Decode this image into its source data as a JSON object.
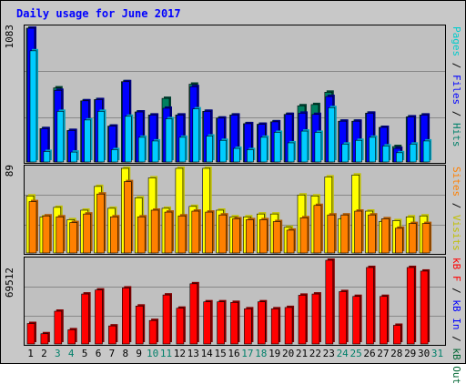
{
  "title": "Daily usage for June 2017",
  "colors": {
    "hits": "#00ccff",
    "hits_edge": "#00a2c0",
    "files": "#0000ff",
    "files_edge": "#000080",
    "pages": "#00cccc",
    "visits": "#ffff00",
    "visits_edge": "#c0c000",
    "sites": "#ff8000",
    "sites_edge": "#b05800",
    "kbf": "#ff0000",
    "kbf_edge": "#800000",
    "kbin": "#0000ff",
    "kbout": "#006633",
    "grid": "#888888",
    "weekend": "#00806a",
    "weekday": "#000000"
  },
  "legend": {
    "top": [
      {
        "text": "Pages",
        "color": "#00cccc"
      },
      {
        "text": " / ",
        "color": "#000000"
      },
      {
        "text": "Files",
        "color": "#0000ff"
      },
      {
        "text": " / ",
        "color": "#000000"
      },
      {
        "text": "Hits",
        "color": "#00806a"
      }
    ],
    "middle": [
      {
        "text": "Sites",
        "color": "#ff8000"
      },
      {
        "text": " / ",
        "color": "#000000"
      },
      {
        "text": "Visits",
        "color": "#c0c000"
      }
    ],
    "bottom": [
      {
        "text": "kB F",
        "color": "#ff0000"
      },
      {
        "text": " / ",
        "color": "#000000"
      },
      {
        "text": "kB In",
        "color": "#0000ff"
      },
      {
        "text": " / ",
        "color": "#000000"
      },
      {
        "text": "kB Out",
        "color": "#006633"
      }
    ]
  },
  "chart_data": [
    {
      "type": "bar",
      "panel": "hits-files-pages",
      "ymax_label": "1083",
      "ylim": [
        0,
        1083
      ],
      "categories": [
        "1",
        "2",
        "3",
        "4",
        "5",
        "6",
        "7",
        "8",
        "9",
        "10",
        "11",
        "12",
        "13",
        "14",
        "15",
        "16",
        "17",
        "18",
        "19",
        "20",
        "21",
        "22",
        "23",
        "24",
        "25",
        "26",
        "27",
        "28",
        "29",
        "30",
        "31"
      ],
      "series": [
        {
          "name": "Hits",
          "values": [
            1083,
            270,
            600,
            255,
            495,
            505,
            290,
            650,
            405,
            380,
            515,
            380,
            630,
            410,
            355,
            380,
            310,
            305,
            325,
            385,
            455,
            465,
            565,
            330,
            330,
            395,
            280,
            125,
            365,
            380,
            0
          ]
        },
        {
          "name": "Files",
          "values": [
            1083,
            270,
            580,
            255,
            495,
            505,
            290,
            650,
            405,
            380,
            435,
            380,
            610,
            410,
            355,
            380,
            310,
            305,
            325,
            385,
            395,
            385,
            530,
            330,
            330,
            395,
            280,
            110,
            365,
            380,
            0
          ]
        },
        {
          "name": "Pages",
          "values": [
            900,
            85,
            410,
            80,
            340,
            410,
            100,
            370,
            200,
            170,
            350,
            200,
            430,
            210,
            175,
            110,
            100,
            200,
            240,
            155,
            250,
            240,
            440,
            145,
            175,
            200,
            130,
            75,
            145,
            170,
            0
          ]
        }
      ]
    },
    {
      "type": "bar",
      "panel": "visits-sites",
      "ymax_label": "89",
      "ylim": [
        0,
        89
      ],
      "categories": [
        "1",
        "2",
        "3",
        "4",
        "5",
        "6",
        "7",
        "8",
        "9",
        "10",
        "11",
        "12",
        "13",
        "14",
        "15",
        "16",
        "17",
        "18",
        "19",
        "20",
        "21",
        "22",
        "23",
        "24",
        "25",
        "26",
        "27",
        "28",
        "29",
        "30",
        "31"
      ],
      "series": [
        {
          "name": "Visits",
          "values": [
            60,
            38,
            48,
            35,
            45,
            70,
            47,
            89,
            58,
            79,
            47,
            89,
            49,
            89,
            45,
            38,
            38,
            41,
            41,
            27,
            61,
            60,
            80,
            36,
            82,
            44,
            33,
            34,
            38,
            39,
            0
          ]
        },
        {
          "name": "Sites",
          "values": [
            54,
            39,
            38,
            32,
            41,
            62,
            38,
            75,
            38,
            45,
            43,
            39,
            44,
            43,
            40,
            36,
            35,
            35,
            33,
            24,
            37,
            50,
            40,
            40,
            44,
            40,
            36,
            26,
            31,
            31,
            0
          ]
        }
      ]
    },
    {
      "type": "bar",
      "panel": "kbytes",
      "ymax_label": "69512",
      "ylim": [
        0,
        69512
      ],
      "categories": [
        "1",
        "2",
        "3",
        "4",
        "5",
        "6",
        "7",
        "8",
        "9",
        "10",
        "11",
        "12",
        "13",
        "14",
        "15",
        "16",
        "17",
        "18",
        "19",
        "20",
        "21",
        "22",
        "23",
        "24",
        "25",
        "26",
        "27",
        "28",
        "29",
        "30",
        "31"
      ],
      "series": [
        {
          "name": "kB F",
          "values": [
            17000,
            8500,
            27200,
            11800,
            41500,
            44800,
            15000,
            46500,
            31500,
            19500,
            40700,
            29700,
            50000,
            35000,
            35000,
            34500,
            29200,
            35000,
            29200,
            30300,
            40500,
            41500,
            69512,
            43500,
            39500,
            63500,
            39500,
            15500,
            63500,
            60500,
            0
          ]
        }
      ]
    }
  ]
}
